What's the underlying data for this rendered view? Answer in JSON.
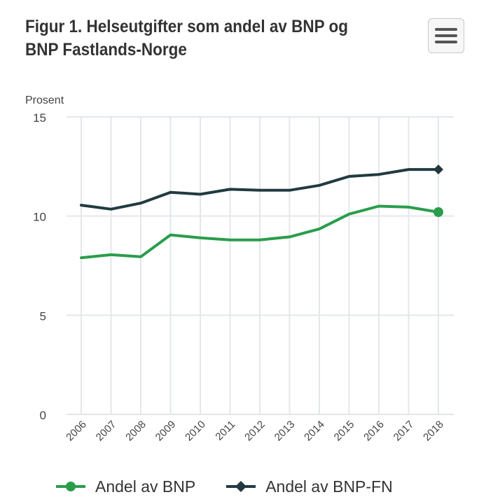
{
  "header": {
    "title": "Figur 1. Helseutgifter som andel av BNP og BNP Fastlands-Norge",
    "menu_icon": "hamburger-menu-icon"
  },
  "colors": {
    "bnp": "#2a9d4b",
    "bnp_fn": "#223a40",
    "grid": "#e3e7ea",
    "text": "#333333"
  },
  "chart_data": {
    "type": "line",
    "title": "Figur 1. Helseutgifter som andel av BNP og BNP Fastlands-Norge",
    "ylabel": "Prosent",
    "xlabel": "",
    "ylim": [
      0,
      15
    ],
    "yticks": [
      0,
      5,
      10,
      15
    ],
    "categories": [
      "2006",
      "2007",
      "2008",
      "2009",
      "2010",
      "2011",
      "2012",
      "2013",
      "2014",
      "2015",
      "2016",
      "2017",
      "2018"
    ],
    "series": [
      {
        "name": "Andel av BNP",
        "color": "#2a9d4b",
        "marker": "circle",
        "values": [
          7.9,
          8.05,
          7.95,
          9.05,
          8.9,
          8.8,
          8.8,
          8.95,
          9.35,
          10.1,
          10.5,
          10.45,
          10.2
        ]
      },
      {
        "name": "Andel av BNP-FN",
        "color": "#223a40",
        "marker": "diamond",
        "values": [
          10.55,
          10.35,
          10.65,
          11.2,
          11.1,
          11.35,
          11.3,
          11.3,
          11.55,
          12.0,
          12.1,
          12.35,
          12.35
        ]
      }
    ],
    "legend": "bottom",
    "grid": true
  }
}
